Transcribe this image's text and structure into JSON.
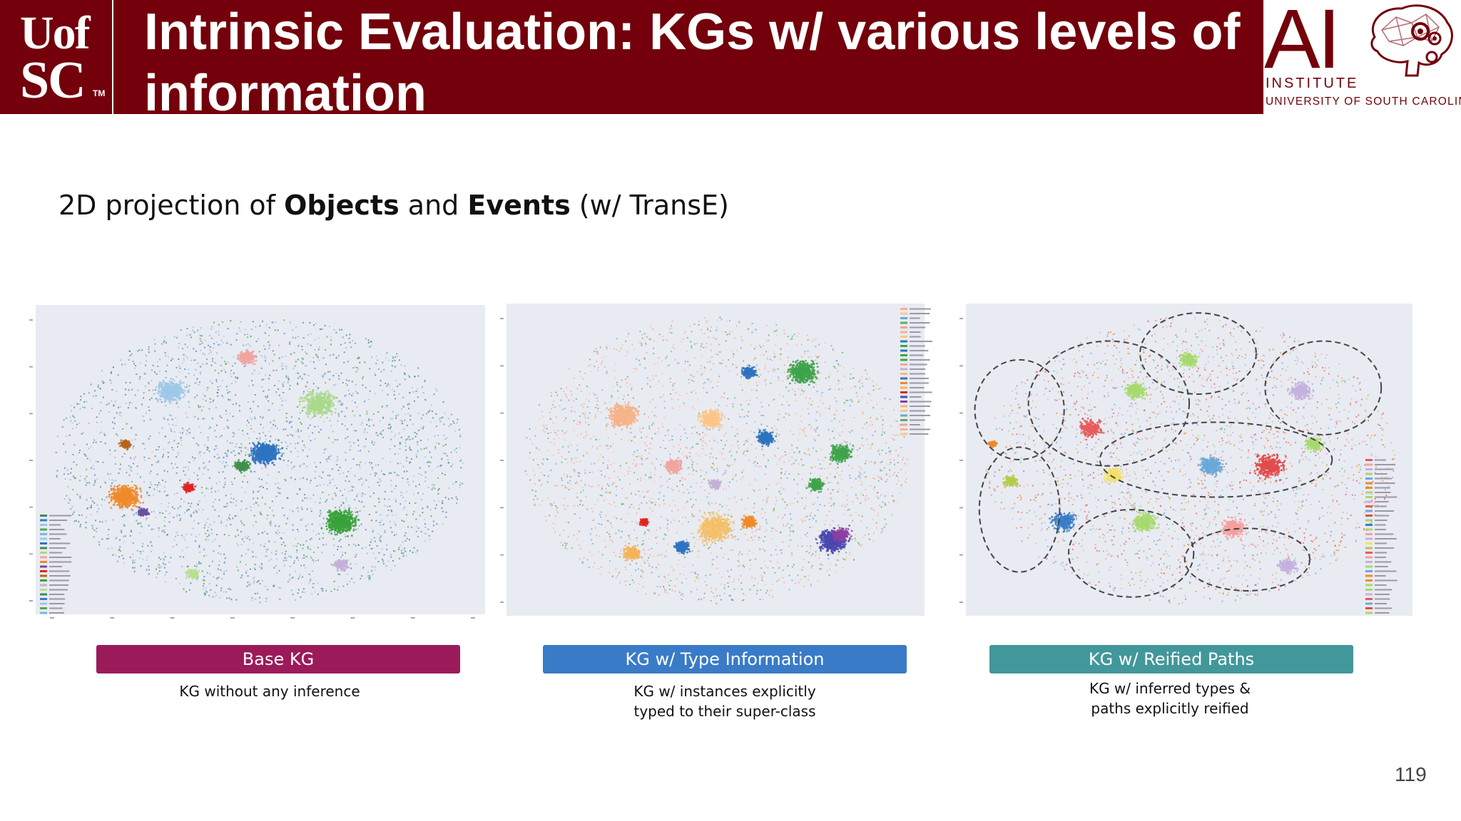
{
  "header": {
    "university_logo": {
      "line1": "UofSC",
      "line2": "SC",
      "line1_display": "Uof",
      "trademark": "TM"
    },
    "title": "Intrinsic Evaluation: KGs w/ various levels of information",
    "ai_logo": {
      "letters": "AI",
      "institute": "INSTITUTE",
      "university": "UNIVERSITY OF SOUTH CAROLINA",
      "icon": "brain-gears-icon"
    },
    "colors": {
      "brand": "#73000a"
    }
  },
  "subtitle": {
    "pre": "2D projection of ",
    "objects": "Objects",
    "and": " and ",
    "events": "Events",
    "post": " (w/ TransE)"
  },
  "panels": [
    {
      "label": "Base KG",
      "color": "#9b1b5a",
      "caption_lines": [
        "KG without any inference"
      ]
    },
    {
      "label": "KG w/ Type Information",
      "color": "#3a7bc8",
      "caption_lines": [
        "KG w/ instances explicitly",
        "typed to their super-class"
      ]
    },
    {
      "label": "KG w/  Reified Paths",
      "color": "#42979a",
      "caption_lines": [
        "KG w/ inferred types &",
        "paths explicitly reified"
      ]
    }
  ],
  "page_number": "119"
}
